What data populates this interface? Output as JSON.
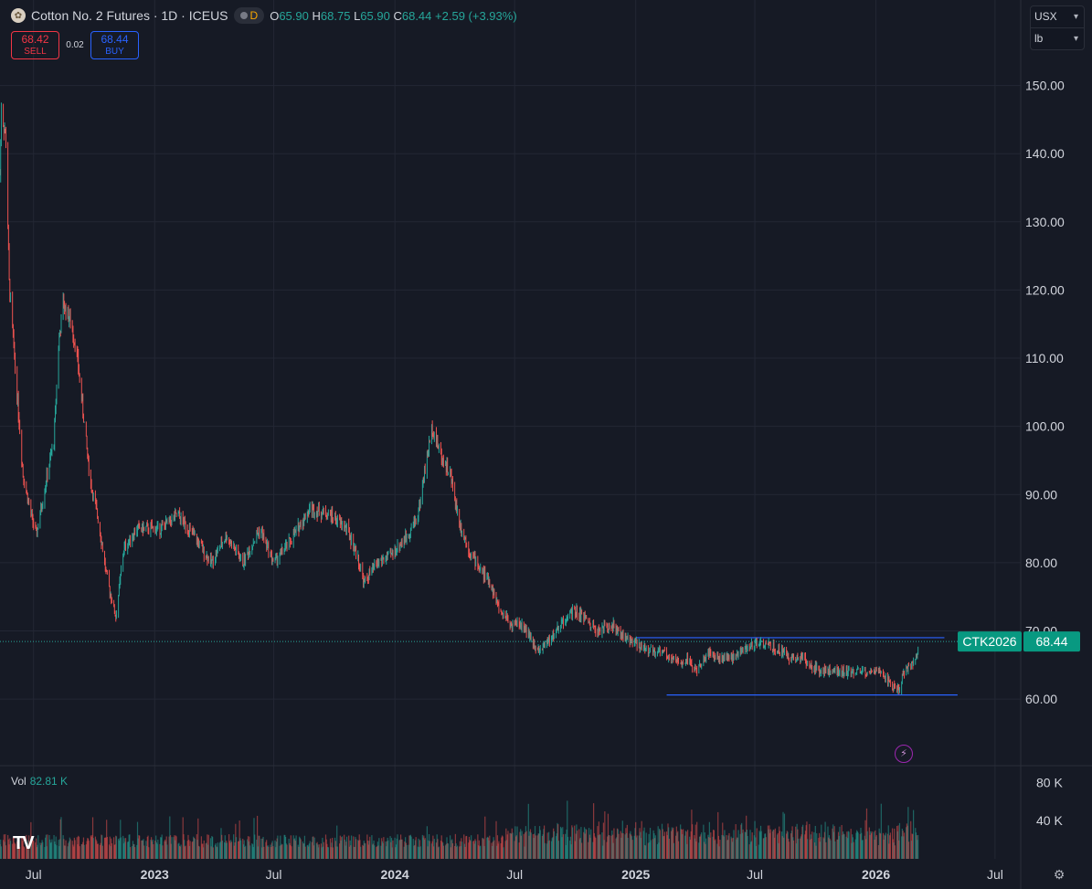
{
  "header": {
    "title": "Cotton No. 2 Futures · 1D · ICEUS",
    "interval_badge": "D",
    "ohlc": {
      "o_label": "O",
      "o": "65.90",
      "h_label": "H",
      "h": "68.75",
      "l_label": "L",
      "l": "65.90",
      "c_label": "C",
      "c": "68.44",
      "change": "+2.59 (+3.93%)"
    }
  },
  "trade": {
    "sell_price": "68.42",
    "sell_label": "SELL",
    "spread": "0.02",
    "buy_price": "68.44",
    "buy_label": "BUY"
  },
  "units": {
    "currency": "USX",
    "unit": "lb"
  },
  "volume_legend": {
    "label": "Vol",
    "value": "82.81 K"
  },
  "colors": {
    "background": "#161a25",
    "up": "#26a69a",
    "down": "#ef5350",
    "grid": "#232734",
    "text": "#d1d4dc",
    "horizontal_line": "#2962ff",
    "price_label_bg": "#089981"
  },
  "icons": {
    "gear": "gear-icon",
    "flash": "lightning-icon",
    "logo": "tradingview-logo-icon"
  },
  "chart_data": {
    "type": "candlestick",
    "symbol_label": "CTK2026",
    "last_price": 68.44,
    "ylim": [
      50.5,
      154.5
    ],
    "y_ticks": [
      60,
      70,
      80,
      90,
      100,
      110,
      120,
      130,
      140,
      150
    ],
    "y_tick_labels": [
      "60.00",
      "70.00",
      "80.00",
      "90.00",
      "100.00",
      "110.00",
      "120.00",
      "130.00",
      "140.00",
      "150.00"
    ],
    "x_range": [
      "2022-05-11",
      "2026-08-09"
    ],
    "x_ticks": [
      {
        "date": "2022-07-01",
        "label": "Jul"
      },
      {
        "date": "2023-01-01",
        "label": "2023"
      },
      {
        "date": "2023-07-01",
        "label": "Jul"
      },
      {
        "date": "2024-01-01",
        "label": "2024"
      },
      {
        "date": "2024-07-01",
        "label": "Jul"
      },
      {
        "date": "2025-01-01",
        "label": "2025"
      },
      {
        "date": "2025-07-01",
        "label": "Jul"
      },
      {
        "date": "2026-01-01",
        "label": "2026"
      },
      {
        "date": "2026-07-01",
        "label": "Jul"
      }
    ],
    "price_path": [
      [
        "2022-05-11",
        137
      ],
      [
        "2022-05-13",
        147
      ],
      [
        "2022-05-20",
        142
      ],
      [
        "2022-05-25",
        121
      ],
      [
        "2022-06-02",
        110
      ],
      [
        "2022-06-15",
        93
      ],
      [
        "2022-06-25",
        88
      ],
      [
        "2022-07-05",
        84
      ],
      [
        "2022-07-20",
        92
      ],
      [
        "2022-08-01",
        98
      ],
      [
        "2022-08-08",
        112
      ],
      [
        "2022-08-15",
        118
      ],
      [
        "2022-08-24",
        116
      ],
      [
        "2022-09-03",
        112
      ],
      [
        "2022-09-10",
        106
      ],
      [
        "2022-09-25",
        92
      ],
      [
        "2022-10-08",
        86
      ],
      [
        "2022-10-20",
        78
      ],
      [
        "2022-11-03",
        72
      ],
      [
        "2022-11-15",
        82
      ],
      [
        "2022-12-05",
        85
      ],
      [
        "2023-01-10",
        85
      ],
      [
        "2023-02-05",
        87
      ],
      [
        "2023-03-01",
        84
      ],
      [
        "2023-03-28",
        80
      ],
      [
        "2023-04-20",
        84
      ],
      [
        "2023-05-15",
        80
      ],
      [
        "2023-06-10",
        85
      ],
      [
        "2023-07-01",
        80
      ],
      [
        "2023-07-25",
        83
      ],
      [
        "2023-08-25",
        88
      ],
      [
        "2023-09-25",
        87
      ],
      [
        "2023-10-20",
        85
      ],
      [
        "2023-11-05",
        81
      ],
      [
        "2023-11-15",
        77
      ],
      [
        "2023-12-05",
        80
      ],
      [
        "2023-12-25",
        81
      ],
      [
        "2024-01-20",
        84
      ],
      [
        "2024-02-05",
        87
      ],
      [
        "2024-02-18",
        95
      ],
      [
        "2024-02-27",
        100
      ],
      [
        "2024-03-10",
        96
      ],
      [
        "2024-03-25",
        93
      ],
      [
        "2024-04-08",
        86
      ],
      [
        "2024-04-22",
        82
      ],
      [
        "2024-05-10",
        79
      ],
      [
        "2024-05-25",
        77
      ],
      [
        "2024-06-08",
        73
      ],
      [
        "2024-06-25",
        71
      ],
      [
        "2024-07-10",
        71
      ],
      [
        "2024-07-25",
        69
      ],
      [
        "2024-08-08",
        67
      ],
      [
        "2024-08-25",
        69
      ],
      [
        "2024-09-10",
        71
      ],
      [
        "2024-09-28",
        73
      ],
      [
        "2024-10-15",
        72
      ],
      [
        "2024-11-05",
        70
      ],
      [
        "2024-11-25",
        71
      ],
      [
        "2024-12-15",
        69
      ],
      [
        "2025-01-05",
        68
      ],
      [
        "2025-01-25",
        67
      ],
      [
        "2025-02-10",
        67
      ],
      [
        "2025-02-25",
        66
      ],
      [
        "2025-03-10",
        65
      ],
      [
        "2025-03-20",
        66
      ],
      [
        "2025-04-05",
        64
      ],
      [
        "2025-04-20",
        67
      ],
      [
        "2025-05-08",
        66
      ],
      [
        "2025-05-25",
        66
      ],
      [
        "2025-06-10",
        67
      ],
      [
        "2025-07-01",
        68
      ],
      [
        "2025-07-20",
        68
      ],
      [
        "2025-08-10",
        67
      ],
      [
        "2025-08-25",
        66
      ],
      [
        "2025-09-10",
        66
      ],
      [
        "2025-09-25",
        65
      ],
      [
        "2025-10-10",
        64
      ],
      [
        "2025-10-25",
        64
      ],
      [
        "2025-11-10",
        64
      ],
      [
        "2025-11-25",
        64
      ],
      [
        "2025-12-10",
        64
      ],
      [
        "2025-12-25",
        64
      ],
      [
        "2026-01-10",
        64
      ],
      [
        "2026-01-25",
        62
      ],
      [
        "2026-02-05",
        61
      ],
      [
        "2026-02-12",
        64
      ],
      [
        "2026-02-22",
        65
      ],
      [
        "2026-03-03",
        66
      ],
      [
        "2026-03-08",
        68.44
      ]
    ],
    "horizontal_lines": [
      {
        "y": 69.0,
        "from": "2025-01-01",
        "to": "2026-04-15"
      },
      {
        "y": 60.6,
        "from": "2025-02-17",
        "to": "2026-05-05"
      }
    ],
    "volume": {
      "label": "Vol",
      "last": 82810,
      "ylim": [
        0,
        90000
      ],
      "y_ticks": [
        40000,
        80000
      ],
      "y_tick_labels": [
        "40 K",
        "80 K"
      ]
    }
  }
}
